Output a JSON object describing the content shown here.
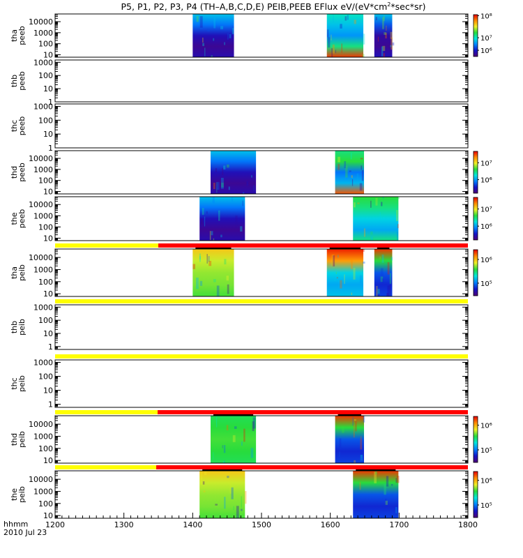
{
  "title_parts": {
    "main": "P5, P1, P2, P3, P4 (TH–A,B,C,D,E) PEIB,PEEB EFlux eV/(eV*cm",
    "sup": "2",
    "tail": "*sec*sr)"
  },
  "footer": {
    "axis_label": "hhmm",
    "date": "2010 Jul 23"
  },
  "colors": {
    "quality_yellow": "#ffff00",
    "quality_red": "#ff0000",
    "frame": "#000000"
  },
  "chart_data": {
    "type": "heatmap",
    "x_label": "hhmm",
    "x_range": [
      1200,
      1800
    ],
    "x_ticks": [
      "1200",
      "1300",
      "1400",
      "1500",
      "1600",
      "1700",
      "1800"
    ],
    "y_scale": "log",
    "colormap": "rainbow",
    "panels": [
      {
        "name": "thapeeb",
        "label": [
          "tha",
          "peeb"
        ],
        "y_range": [
          6,
          50000
        ],
        "y_ticks": [
          "10",
          "100",
          "1000",
          "10000"
        ],
        "colorbar": {
          "label_positions": [
            0.04,
            0.55,
            0.84
          ],
          "labels": [
            "10⁸",
            "10⁷",
            "10⁶"
          ]
        },
        "blocks": [
          {
            "x": [
              1400,
              1460
            ],
            "palette": "blue"
          },
          {
            "x": [
              1595,
              1648
            ],
            "palette": "cyanred"
          },
          {
            "x": [
              1664,
              1690
            ],
            "palette": "cyanblue"
          }
        ]
      },
      {
        "name": "thbpeeb",
        "label": [
          "thb",
          "peeb"
        ],
        "y_range": [
          1,
          1500
        ],
        "y_ticks": [
          "1",
          "10",
          "100",
          "1000"
        ],
        "blocks": []
      },
      {
        "name": "thcpeeb",
        "label": [
          "thc",
          "peeb"
        ],
        "y_range": [
          1,
          1500
        ],
        "y_ticks": [
          "1",
          "10",
          "100",
          "1000"
        ],
        "blocks": []
      },
      {
        "name": "thdpeeb",
        "label": [
          "thd",
          "peeb"
        ],
        "y_range": [
          6,
          50000
        ],
        "y_ticks": [
          "10",
          "100",
          "1000",
          "10000"
        ],
        "colorbar": {
          "label_positions": [
            0.28,
            0.67
          ],
          "labels": [
            "10⁷",
            "10⁶"
          ]
        },
        "blocks": [
          {
            "x": [
              1426,
              1492
            ],
            "palette": "blue"
          },
          {
            "x": [
              1607,
              1649
            ],
            "palette": "greenred"
          }
        ]
      },
      {
        "name": "thepeeb",
        "label": [
          "the",
          "peeb"
        ],
        "y_range": [
          6,
          50000
        ],
        "y_ticks": [
          "10",
          "100",
          "1000",
          "10000"
        ],
        "colorbar": {
          "label_positions": [
            0.28,
            0.67
          ],
          "labels": [
            "10⁷",
            "10⁶"
          ]
        },
        "blocks": [
          {
            "x": [
              1410,
              1476
            ],
            "palette": "blue"
          },
          {
            "x": [
              1633,
              1699
            ],
            "palette": "greencyan"
          }
        ]
      },
      {
        "name": "thapeib",
        "label": [
          "tha",
          "peib"
        ],
        "y_range": [
          6,
          50000
        ],
        "y_ticks": [
          "10",
          "100",
          "1000",
          "10000"
        ],
        "quality": [
          {
            "x": [
              1200,
              1350
            ],
            "color": "yellow"
          },
          {
            "x": [
              1350,
              1800
            ],
            "color": "red"
          }
        ],
        "colorbar": {
          "label_positions": [
            0.22,
            0.72
          ],
          "labels": [
            "10⁶",
            "10⁵"
          ]
        },
        "blocks": [
          {
            "x": [
              1400,
              1460
            ],
            "palette": "yellow"
          },
          {
            "x": [
              1595,
              1648
            ],
            "palette": "redcyan"
          },
          {
            "x": [
              1664,
              1690
            ],
            "palette": "redblue"
          }
        ]
      },
      {
        "name": "thbpeib",
        "label": [
          "thb",
          "peib"
        ],
        "y_range": [
          0.6,
          1500
        ],
        "y_ticks": [
          "1",
          "10",
          "100",
          "1000"
        ],
        "quality": [
          {
            "x": [
              1200,
              1800
            ],
            "color": "yellow"
          }
        ],
        "blocks": []
      },
      {
        "name": "thcpeib",
        "label": [
          "thc",
          "peib"
        ],
        "y_range": [
          0.6,
          1500
        ],
        "y_ticks": [
          "1",
          "10",
          "100",
          "1000"
        ],
        "quality": [
          {
            "x": [
              1200,
              1800
            ],
            "color": "yellow"
          }
        ],
        "blocks": []
      },
      {
        "name": "thdpeib",
        "label": [
          "thd",
          "peib"
        ],
        "y_range": [
          6,
          50000
        ],
        "y_ticks": [
          "10",
          "100",
          "1000",
          "10000"
        ],
        "quality": [
          {
            "x": [
              1200,
              1349
            ],
            "color": "yellow"
          },
          {
            "x": [
              1349,
              1800
            ],
            "color": "red"
          }
        ],
        "colorbar": {
          "label_positions": [
            0.2,
            0.72
          ],
          "labels": [
            "10⁶",
            "10⁵"
          ]
        },
        "blocks": [
          {
            "x": [
              1426,
              1492
            ],
            "palette": "green"
          },
          {
            "x": [
              1607,
              1649
            ],
            "palette": "redblue"
          }
        ]
      },
      {
        "name": "thepeib",
        "label": [
          "the",
          "peib"
        ],
        "y_range": [
          6,
          50000
        ],
        "y_ticks": [
          "10",
          "100",
          "1000",
          "10000"
        ],
        "quality": [
          {
            "x": [
              1200,
              1347
            ],
            "color": "yellow"
          },
          {
            "x": [
              1347,
              1800
            ],
            "color": "red"
          }
        ],
        "colorbar": {
          "label_positions": [
            0.2,
            0.72
          ],
          "labels": [
            "10⁶",
            "10⁵"
          ]
        },
        "blocks": [
          {
            "x": [
              1410,
              1476
            ],
            "palette": "yellow"
          },
          {
            "x": [
              1633,
              1699
            ],
            "palette": "redblue"
          }
        ]
      }
    ]
  }
}
